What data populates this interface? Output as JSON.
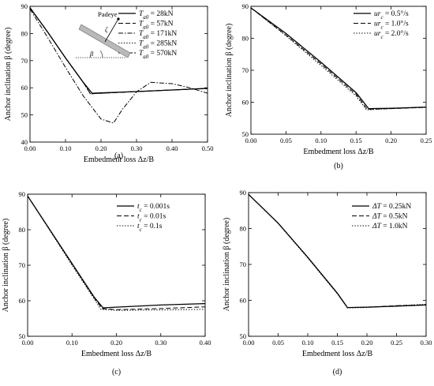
{
  "chart_data": [
    {
      "type": "line",
      "panel_label": "(a)",
      "xlabel": "Embedment loss  Δz/B",
      "ylabel": "Anchor inclination β (degree)",
      "xlim": [
        0.0,
        0.5
      ],
      "ylim": [
        40,
        90
      ],
      "xticks": [
        0.0,
        0.1,
        0.2,
        0.3,
        0.4,
        0.5
      ],
      "xtick_labels": [
        "0.00",
        "0.10",
        "0.20",
        "0.30",
        "0.40",
        "0.50"
      ],
      "yticks": [
        40,
        50,
        60,
        70,
        80,
        90
      ],
      "ytick_labels": [
        "40",
        "50",
        "60",
        "70",
        "80",
        "90"
      ],
      "legend_position": "top-right",
      "inset": {
        "padeye_label": "Padeye",
        "beta_label": "β",
        "zeta_label": "ζ"
      },
      "series": [
        {
          "name": "Ta0 = 28kN",
          "legend_prefix": "T",
          "legend_sub": "a0",
          "legend_suffix": " = 28kN",
          "dash": "solid",
          "x": [
            0.0,
            0.05,
            0.1,
            0.15,
            0.175,
            0.2,
            0.3,
            0.4,
            0.5
          ],
          "y": [
            89.5,
            80.5,
            71.0,
            62.0,
            58.0,
            58.1,
            58.6,
            59.2,
            59.8
          ]
        },
        {
          "name": "Ta0 = 57kN",
          "legend_prefix": "T",
          "legend_sub": "a0",
          "legend_suffix": " = 57kN",
          "dash": "dash",
          "x": [
            0.0,
            0.05,
            0.1,
            0.15,
            0.17,
            0.2,
            0.3,
            0.4,
            0.5
          ],
          "y": [
            89.5,
            80.5,
            71.0,
            62.0,
            57.8,
            58.0,
            58.6,
            59.2,
            59.7
          ]
        },
        {
          "name": "Ta0 = 171kN",
          "legend_prefix": "T",
          "legend_sub": "a0",
          "legend_suffix": " = 171kN",
          "dash": "dashdot",
          "x": [
            0.0,
            0.05,
            0.1,
            0.15,
            0.2,
            0.235,
            0.26,
            0.3,
            0.34,
            0.4,
            0.45,
            0.5
          ],
          "y": [
            89.0,
            78.5,
            67.5,
            57.0,
            48.5,
            47.0,
            52.0,
            58.5,
            62.0,
            61.5,
            60.0,
            58.0
          ]
        },
        {
          "name": "Ta0 = 285kN",
          "legend_prefix": "T",
          "legend_sub": "a0",
          "legend_suffix": " = 285kN",
          "dash": "dot",
          "x": [
            0.0,
            0.05,
            0.1,
            0.15,
            0.17,
            0.2,
            0.3,
            0.4,
            0.5
          ],
          "y": [
            89.5,
            80.5,
            71.0,
            62.0,
            57.8,
            58.0,
            58.6,
            59.2,
            59.7
          ]
        },
        {
          "name": "Ta0 = 570kN",
          "legend_prefix": "T",
          "legend_sub": "a0",
          "legend_suffix": " = 570kN",
          "dash": "shortdash",
          "x": [
            0.0,
            0.05,
            0.1,
            0.15,
            0.17,
            0.2,
            0.3,
            0.4,
            0.5
          ],
          "y": [
            89.5,
            80.5,
            71.0,
            62.0,
            57.8,
            58.0,
            58.6,
            59.2,
            59.8
          ]
        }
      ]
    },
    {
      "type": "line",
      "panel_label": "(b)",
      "xlabel": "Embedment loss  Δz/B",
      "ylabel": "Anchor inclination β (degree)",
      "xlim": [
        0.0,
        0.25
      ],
      "ylim": [
        50,
        90
      ],
      "xticks": [
        0.0,
        0.05,
        0.1,
        0.15,
        0.2,
        0.25
      ],
      "xtick_labels": [
        "0.00",
        "0.05",
        "0.10",
        "0.15",
        "0.20",
        "0.25"
      ],
      "yticks": [
        50,
        60,
        70,
        80,
        90
      ],
      "ytick_labels": [
        "50",
        "60",
        "70",
        "80",
        "90"
      ],
      "legend_position": "top-right",
      "series": [
        {
          "name": "urc = 0.5°/s",
          "legend_prefix": "ur",
          "legend_sub": "c",
          "legend_suffix": " = 0.5°/s",
          "dash": "solid",
          "x": [
            0.0,
            0.05,
            0.1,
            0.15,
            0.168,
            0.2,
            0.25
          ],
          "y": [
            89.5,
            81.5,
            72.5,
            63.0,
            58.0,
            58.1,
            58.5
          ]
        },
        {
          "name": "urc = 1.0°/s",
          "legend_prefix": "ur",
          "legend_sub": "c",
          "legend_suffix": " = 1.0°/s",
          "dash": "dash",
          "x": [
            0.0,
            0.05,
            0.1,
            0.15,
            0.166,
            0.2,
            0.25
          ],
          "y": [
            89.5,
            81.0,
            72.0,
            62.5,
            57.8,
            58.0,
            58.4
          ]
        },
        {
          "name": "urc = 2.0°/s",
          "legend_prefix": "ur",
          "legend_sub": "c",
          "legend_suffix": " = 2.0°/s",
          "dash": "dot",
          "x": [
            0.0,
            0.05,
            0.1,
            0.15,
            0.165,
            0.2,
            0.25
          ],
          "y": [
            89.5,
            80.8,
            71.5,
            62.0,
            57.6,
            58.0,
            58.4
          ]
        }
      ]
    },
    {
      "type": "line",
      "panel_label": "(c)",
      "xlabel": "Embedment loss  Δz/B",
      "ylabel": "Anchor inclination β (degree)",
      "xlim": [
        0.0,
        0.4
      ],
      "ylim": [
        50,
        90
      ],
      "xticks": [
        0.0,
        0.1,
        0.2,
        0.3,
        0.4
      ],
      "xtick_labels": [
        "0.00",
        "0.10",
        "0.20",
        "0.30",
        "0.40"
      ],
      "yticks": [
        50,
        60,
        70,
        80,
        90
      ],
      "ytick_labels": [
        "50",
        "60",
        "70",
        "80",
        "90"
      ],
      "legend_position": "top-right",
      "series": [
        {
          "name": "tc = 0.001s",
          "legend_prefix": "t",
          "legend_sub": "c",
          "legend_suffix": " = 0.001s",
          "dash": "solid",
          "x": [
            0.0,
            0.05,
            0.1,
            0.15,
            0.17,
            0.2,
            0.3,
            0.4
          ],
          "y": [
            89.5,
            80.0,
            70.5,
            61.0,
            58.0,
            58.2,
            58.8,
            59.2
          ]
        },
        {
          "name": "tc = 0.01s",
          "legend_prefix": "t",
          "legend_sub": "c",
          "legend_suffix": " = 0.01s",
          "dash": "dash",
          "x": [
            0.0,
            0.05,
            0.1,
            0.15,
            0.168,
            0.2,
            0.3,
            0.4
          ],
          "y": [
            89.5,
            80.0,
            70.3,
            60.8,
            57.8,
            57.5,
            57.8,
            58.3
          ]
        },
        {
          "name": "tc = 0.1s",
          "legend_prefix": "t",
          "legend_sub": "c",
          "legend_suffix": " = 0.1s",
          "dash": "dot",
          "x": [
            0.0,
            0.05,
            0.1,
            0.15,
            0.165,
            0.2,
            0.3,
            0.4
          ],
          "y": [
            89.5,
            79.8,
            70.0,
            60.5,
            57.6,
            57.3,
            57.4,
            57.6
          ]
        }
      ]
    },
    {
      "type": "line",
      "panel_label": "(d)",
      "xlabel": "Embedment loss  Δz/B",
      "ylabel": "Anchor inclination β (degree)",
      "xlim": [
        0.0,
        0.3
      ],
      "ylim": [
        50,
        90
      ],
      "xticks": [
        0.0,
        0.05,
        0.1,
        0.15,
        0.2,
        0.25,
        0.3
      ],
      "xtick_labels": [
        "0.00",
        "0.05",
        "0.10",
        "0.15",
        "0.20",
        "0.25",
        "0.30"
      ],
      "yticks": [
        50,
        60,
        70,
        80,
        90
      ],
      "ytick_labels": [
        "50",
        "60",
        "70",
        "80",
        "90"
      ],
      "legend_position": "top-right",
      "series": [
        {
          "name": "ΔT = 0.25kN",
          "legend_prefix": "ΔT",
          "legend_sub": "",
          "legend_suffix": " = 0.25kN",
          "dash": "solid",
          "x": [
            0.0,
            0.05,
            0.1,
            0.15,
            0.167,
            0.2,
            0.25,
            0.3
          ],
          "y": [
            89.5,
            81.5,
            72.0,
            62.0,
            58.0,
            58.1,
            58.4,
            58.7
          ]
        },
        {
          "name": "ΔT = 0.5kN",
          "legend_prefix": "ΔT",
          "legend_sub": "",
          "legend_suffix": " = 0.5kN",
          "dash": "dash",
          "x": [
            0.0,
            0.05,
            0.1,
            0.15,
            0.167,
            0.2,
            0.25,
            0.3
          ],
          "y": [
            89.5,
            81.5,
            72.0,
            62.0,
            58.0,
            58.1,
            58.5,
            58.8
          ]
        },
        {
          "name": "ΔT = 1.0kN",
          "legend_prefix": "ΔT",
          "legend_sub": "",
          "legend_suffix": " = 1.0kN",
          "dash": "dot",
          "x": [
            0.0,
            0.05,
            0.1,
            0.15,
            0.167,
            0.2,
            0.25,
            0.3
          ],
          "y": [
            89.5,
            81.4,
            71.8,
            61.8,
            57.9,
            58.0,
            58.5,
            58.9
          ]
        }
      ]
    }
  ]
}
